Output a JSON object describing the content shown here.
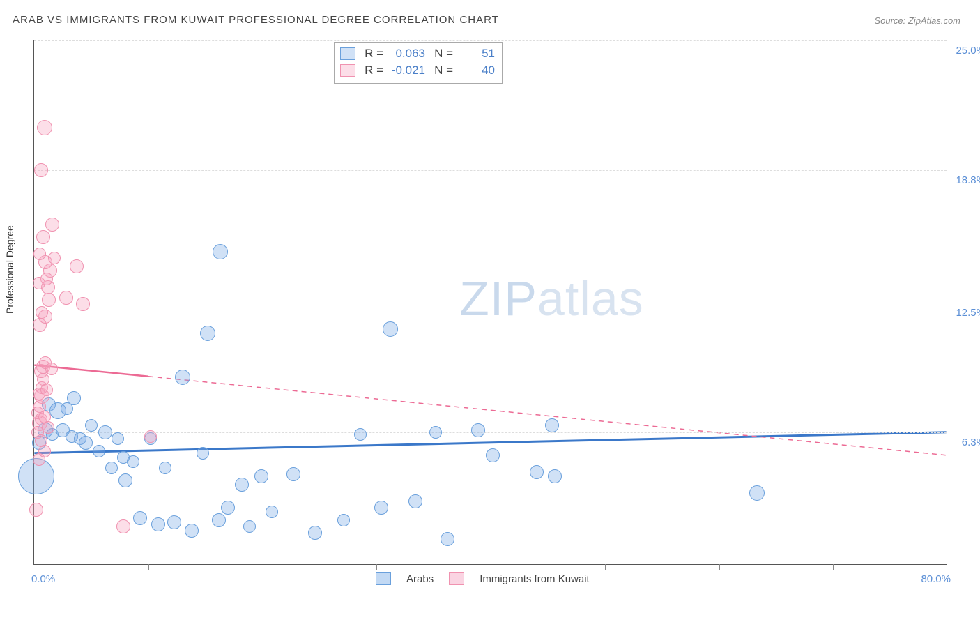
{
  "title": "ARAB VS IMMIGRANTS FROM KUWAIT PROFESSIONAL DEGREE CORRELATION CHART",
  "source": "Source: ZipAtlas.com",
  "ylabel": "Professional Degree",
  "watermark_zip": "ZIP",
  "watermark_atlas": "atlas",
  "chart": {
    "type": "scatter",
    "xlim": [
      0,
      80
    ],
    "ylim": [
      0,
      25
    ],
    "x_min_label": "0.0%",
    "x_max_label": "80.0%",
    "x_ticks": [
      10,
      20,
      30,
      40,
      50,
      60,
      70
    ],
    "y_gridlines": [
      6.3,
      12.5,
      18.8,
      25.0
    ],
    "y_labels": [
      "6.3%",
      "12.5%",
      "18.8%",
      "25.0%"
    ],
    "background_color": "#ffffff",
    "grid_color": "#dddddd",
    "axis_color": "#555555",
    "series": [
      {
        "name": "Arabs",
        "label": "Arabs",
        "color_fill": "rgba(120,170,230,0.35)",
        "color_stroke": "#6aa0dc",
        "R": "0.063",
        "N": "51",
        "trend": {
          "y_at_xmin": 5.3,
          "y_at_xmax": 6.3,
          "solid_until": 80,
          "color": "#3b78c9"
        },
        "points": [
          {
            "x": 0.2,
            "y": 4.2,
            "r": 26
          },
          {
            "x": 0.4,
            "y": 5.8,
            "r": 10
          },
          {
            "x": 1.0,
            "y": 6.4,
            "r": 11
          },
          {
            "x": 1.3,
            "y": 7.6,
            "r": 10
          },
          {
            "x": 1.6,
            "y": 6.2,
            "r": 9
          },
          {
            "x": 2.1,
            "y": 7.3,
            "r": 12
          },
          {
            "x": 2.5,
            "y": 6.4,
            "r": 10
          },
          {
            "x": 2.9,
            "y": 7.4,
            "r": 9
          },
          {
            "x": 3.3,
            "y": 6.1,
            "r": 9
          },
          {
            "x": 3.5,
            "y": 7.9,
            "r": 10
          },
          {
            "x": 4.0,
            "y": 6.0,
            "r": 9
          },
          {
            "x": 4.5,
            "y": 5.8,
            "r": 10
          },
          {
            "x": 5.0,
            "y": 6.6,
            "r": 9
          },
          {
            "x": 5.7,
            "y": 5.4,
            "r": 9
          },
          {
            "x": 6.2,
            "y": 6.3,
            "r": 10
          },
          {
            "x": 6.8,
            "y": 4.6,
            "r": 9
          },
          {
            "x": 7.3,
            "y": 6.0,
            "r": 9
          },
          {
            "x": 8.0,
            "y": 4.0,
            "r": 10
          },
          {
            "x": 8.7,
            "y": 4.9,
            "r": 9
          },
          {
            "x": 9.3,
            "y": 2.2,
            "r": 10
          },
          {
            "x": 10.2,
            "y": 6.0,
            "r": 9
          },
          {
            "x": 10.9,
            "y": 1.9,
            "r": 10
          },
          {
            "x": 11.5,
            "y": 4.6,
            "r": 9
          },
          {
            "x": 12.3,
            "y": 2.0,
            "r": 10
          },
          {
            "x": 13.0,
            "y": 8.9,
            "r": 11
          },
          {
            "x": 13.8,
            "y": 1.6,
            "r": 10
          },
          {
            "x": 14.8,
            "y": 5.3,
            "r": 9
          },
          {
            "x": 15.2,
            "y": 11.0,
            "r": 11
          },
          {
            "x": 16.2,
            "y": 2.1,
            "r": 10
          },
          {
            "x": 16.3,
            "y": 14.9,
            "r": 11
          },
          {
            "x": 17.0,
            "y": 2.7,
            "r": 10
          },
          {
            "x": 18.2,
            "y": 3.8,
            "r": 10
          },
          {
            "x": 18.9,
            "y": 1.8,
            "r": 9
          },
          {
            "x": 19.9,
            "y": 4.2,
            "r": 10
          },
          {
            "x": 20.8,
            "y": 2.5,
            "r": 9
          },
          {
            "x": 22.7,
            "y": 4.3,
            "r": 10
          },
          {
            "x": 24.6,
            "y": 1.5,
            "r": 10
          },
          {
            "x": 27.1,
            "y": 2.1,
            "r": 9
          },
          {
            "x": 30.4,
            "y": 2.7,
            "r": 10
          },
          {
            "x": 31.2,
            "y": 11.2,
            "r": 11
          },
          {
            "x": 33.4,
            "y": 3.0,
            "r": 10
          },
          {
            "x": 35.2,
            "y": 6.3,
            "r": 9
          },
          {
            "x": 36.2,
            "y": 1.2,
            "r": 10
          },
          {
            "x": 38.9,
            "y": 6.4,
            "r": 10
          },
          {
            "x": 40.2,
            "y": 5.2,
            "r": 10
          },
          {
            "x": 44.0,
            "y": 4.4,
            "r": 10
          },
          {
            "x": 45.4,
            "y": 6.6,
            "r": 10
          },
          {
            "x": 45.6,
            "y": 4.2,
            "r": 10
          },
          {
            "x": 63.3,
            "y": 3.4,
            "r": 11
          },
          {
            "x": 28.6,
            "y": 6.2,
            "r": 9
          },
          {
            "x": 7.8,
            "y": 5.1,
            "r": 9
          }
        ]
      },
      {
        "name": "Immigrants from Kuwait",
        "label": "Immigrants from Kuwait",
        "color_fill": "rgba(245,160,190,0.35)",
        "color_stroke": "#f092b0",
        "R": "-0.021",
        "N": "40",
        "trend": {
          "y_at_xmin": 9.5,
          "y_at_xmax": 5.2,
          "solid_until": 10,
          "color": "#ec6a94"
        },
        "points": [
          {
            "x": 0.2,
            "y": 2.6,
            "r": 10
          },
          {
            "x": 0.4,
            "y": 5.0,
            "r": 9
          },
          {
            "x": 0.5,
            "y": 6.7,
            "r": 11
          },
          {
            "x": 0.6,
            "y": 6.9,
            "r": 9
          },
          {
            "x": 0.5,
            "y": 7.5,
            "r": 9
          },
          {
            "x": 0.7,
            "y": 8.0,
            "r": 11
          },
          {
            "x": 0.7,
            "y": 8.4,
            "r": 9
          },
          {
            "x": 0.8,
            "y": 8.8,
            "r": 9
          },
          {
            "x": 0.6,
            "y": 9.2,
            "r": 10
          },
          {
            "x": 0.8,
            "y": 9.4,
            "r": 10
          },
          {
            "x": 1.0,
            "y": 9.6,
            "r": 9
          },
          {
            "x": 0.5,
            "y": 11.4,
            "r": 10
          },
          {
            "x": 1.0,
            "y": 11.8,
            "r": 10
          },
          {
            "x": 1.3,
            "y": 12.6,
            "r": 10
          },
          {
            "x": 1.2,
            "y": 13.2,
            "r": 10
          },
          {
            "x": 1.4,
            "y": 14.0,
            "r": 10
          },
          {
            "x": 1.0,
            "y": 14.4,
            "r": 10
          },
          {
            "x": 0.8,
            "y": 15.6,
            "r": 10
          },
          {
            "x": 1.6,
            "y": 16.2,
            "r": 10
          },
          {
            "x": 0.6,
            "y": 18.8,
            "r": 10
          },
          {
            "x": 0.9,
            "y": 20.8,
            "r": 11
          },
          {
            "x": 2.8,
            "y": 12.7,
            "r": 10
          },
          {
            "x": 3.7,
            "y": 14.2,
            "r": 10
          },
          {
            "x": 4.3,
            "y": 12.4,
            "r": 10
          },
          {
            "x": 7.8,
            "y": 1.8,
            "r": 10
          },
          {
            "x": 10.2,
            "y": 6.1,
            "r": 9
          },
          {
            "x": 0.3,
            "y": 6.3,
            "r": 9
          },
          {
            "x": 0.3,
            "y": 7.2,
            "r": 9
          },
          {
            "x": 0.4,
            "y": 8.1,
            "r": 9
          },
          {
            "x": 0.6,
            "y": 5.9,
            "r": 9
          },
          {
            "x": 0.9,
            "y": 7.0,
            "r": 9
          },
          {
            "x": 1.1,
            "y": 8.3,
            "r": 9
          },
          {
            "x": 1.5,
            "y": 9.3,
            "r": 9
          },
          {
            "x": 0.7,
            "y": 12.0,
            "r": 9
          },
          {
            "x": 1.1,
            "y": 13.6,
            "r": 9
          },
          {
            "x": 1.8,
            "y": 14.6,
            "r": 9
          },
          {
            "x": 0.5,
            "y": 14.8,
            "r": 9
          },
          {
            "x": 0.4,
            "y": 13.4,
            "r": 9
          },
          {
            "x": 1.2,
            "y": 6.5,
            "r": 9
          },
          {
            "x": 0.9,
            "y": 5.4,
            "r": 9
          }
        ]
      }
    ]
  }
}
